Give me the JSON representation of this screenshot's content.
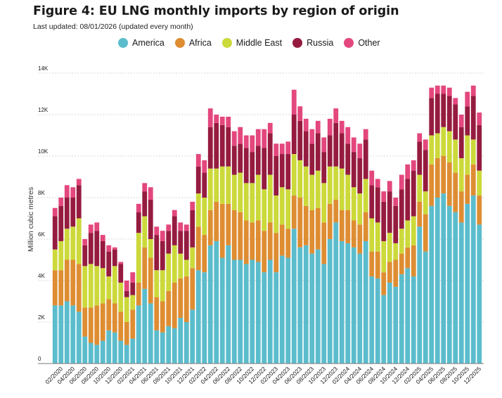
{
  "title": "Figure 4: EU LNG monthly imports by region of origin",
  "subtitle": "Last updated: 08/01/2026 (updated every month)",
  "colors": {
    "America": "#5bbccc",
    "Africa": "#de8d32",
    "Middle East": "#ccd93a",
    "Russia": "#951b3f",
    "Other": "#e3477d"
  },
  "chart_data": {
    "type": "bar",
    "stacked": true,
    "title": "Figure 4: EU LNG monthly imports by region of origin",
    "ylabel": "Million cubic metres",
    "xlabel": "",
    "ylim": [
      0,
      14000
    ],
    "yticks": [
      0,
      2000,
      4000,
      6000,
      8000,
      10000,
      12000,
      14000
    ],
    "ytick_labels": [
      "0",
      "2K",
      "4K",
      "6K",
      "8K",
      "10K",
      "12K",
      "14K"
    ],
    "legend": [
      "America",
      "Africa",
      "Middle East",
      "Russia",
      "Other"
    ],
    "legend_position": "top",
    "grid": true,
    "categories": [
      "01/2020",
      "02/2020",
      "03/2020",
      "04/2020",
      "05/2020",
      "06/2020",
      "07/2020",
      "08/2020",
      "09/2020",
      "10/2020",
      "11/2020",
      "12/2020",
      "01/2021",
      "02/2021",
      "03/2021",
      "04/2021",
      "05/2021",
      "06/2021",
      "07/2021",
      "08/2021",
      "09/2021",
      "10/2021",
      "11/2021",
      "12/2021",
      "01/2022",
      "02/2022",
      "03/2022",
      "04/2022",
      "05/2022",
      "06/2022",
      "07/2022",
      "08/2022",
      "09/2022",
      "10/2022",
      "11/2022",
      "12/2022",
      "01/2023",
      "02/2023",
      "03/2023",
      "04/2023",
      "05/2023",
      "06/2023",
      "07/2023",
      "08/2023",
      "09/2023",
      "10/2023",
      "11/2023",
      "12/2023",
      "01/2024",
      "02/2024",
      "03/2024",
      "04/2024",
      "05/2024",
      "06/2024",
      "07/2024",
      "08/2024",
      "09/2024",
      "10/2024",
      "11/2024",
      "12/2024",
      "01/2025",
      "02/2025",
      "03/2025",
      "04/2025",
      "05/2025",
      "06/2025",
      "07/2025",
      "08/2025",
      "09/2025",
      "10/2025",
      "11/2025",
      "12/2025"
    ],
    "xtick_labels": [
      "02/2020",
      "04/2020",
      "06/2020",
      "08/2020",
      "10/2020",
      "12/2020",
      "02/2021",
      "04/2021",
      "06/2021",
      "08/2021",
      "10/2021",
      "12/2021",
      "02/2022",
      "04/2022",
      "06/2022",
      "08/2022",
      "10/2022",
      "12/2022",
      "02/2023",
      "04/2023",
      "06/2023",
      "08/2023",
      "10/2023",
      "12/2023",
      "02/2024",
      "04/2024",
      "06/2024",
      "08/2024",
      "10/2024",
      "12/2024",
      "02/2025",
      "04/2025",
      "06/2025",
      "08/2025",
      "10/2025",
      "12/2025"
    ],
    "series": [
      {
        "name": "America",
        "values": [
          2800,
          2800,
          3000,
          2800,
          2500,
          1300,
          1000,
          900,
          1100,
          1600,
          1500,
          1100,
          900,
          1200,
          2800,
          3600,
          2900,
          1600,
          1500,
          1800,
          1700,
          2200,
          2000,
          2600,
          4500,
          4400,
          5700,
          5900,
          5100,
          5700,
          5000,
          5000,
          4800,
          5000,
          4900,
          4400,
          5000,
          4400,
          5200,
          5100,
          6500,
          5600,
          5700,
          5300,
          5500,
          4800,
          6000,
          6800,
          5900,
          5800,
          5600,
          5300,
          5900,
          4200,
          4100,
          3300,
          3900,
          3700,
          4300,
          4600,
          4200,
          6600,
          5400,
          7600,
          8000,
          8200,
          7600,
          7300,
          6800,
          7700,
          8100,
          6700
        ]
      },
      {
        "name": "Africa",
        "values": [
          1700,
          1700,
          2000,
          2200,
          2300,
          1400,
          1700,
          1900,
          1800,
          1500,
          1400,
          1400,
          1100,
          1400,
          1100,
          2000,
          2200,
          1600,
          1500,
          1700,
          2200,
          1900,
          2200,
          2000,
          2100,
          1800,
          1700,
          1900,
          2600,
          2000,
          2400,
          2300,
          2100,
          1800,
          2000,
          2000,
          1800,
          1900,
          1500,
          1400,
          1600,
          2400,
          1900,
          2100,
          2000,
          2000,
          1700,
          1100,
          1500,
          1600,
          1300,
          1400,
          1400,
          1200,
          1300,
          1100,
          1000,
          1300,
          1000,
          1000,
          1500,
          1200,
          1800,
          2000,
          1900,
          1800,
          2100,
          1900,
          1500,
          1400,
          1500,
          1400
        ]
      },
      {
        "name": "Middle East",
        "values": [
          1000,
          1400,
          1500,
          1600,
          2200,
          2000,
          2100,
          1900,
          1700,
          1100,
          1800,
          1400,
          1200,
          700,
          2400,
          1500,
          900,
          1300,
          1500,
          1800,
          1800,
          1200,
          800,
          1000,
          1600,
          1800,
          2000,
          1600,
          1800,
          1800,
          1700,
          1900,
          1800,
          1900,
          2200,
          2000,
          2300,
          1800,
          1800,
          1900,
          2000,
          1800,
          1900,
          1700,
          1800,
          1900,
          1800,
          1600,
          2000,
          1700,
          1600,
          1500,
          1600,
          1600,
          1400,
          1500,
          1400,
          800,
          1200,
          1300,
          1400,
          1300,
          1100,
          1400,
          1200,
          1400,
          1500,
          1600,
          1600,
          1900,
          1200,
          1200
        ]
      },
      {
        "name": "Russia",
        "values": [
          1600,
          1700,
          1500,
          1400,
          1600,
          1000,
          1500,
          1700,
          1300,
          1200,
          800,
          900,
          300,
          600,
          1000,
          1200,
          1900,
          1700,
          1400,
          1100,
          1400,
          1100,
          1400,
          1800,
          1300,
          1200,
          2000,
          2200,
          2000,
          1900,
          1400,
          1400,
          1700,
          1500,
          1400,
          2000,
          2000,
          1900,
          1600,
          1700,
          1900,
          1900,
          1700,
          1500,
          1800,
          1500,
          1500,
          2100,
          1700,
          1500,
          1700,
          1700,
          1900,
          1600,
          1700,
          1900,
          2000,
          1800,
          1900,
          2000,
          2200,
          1600,
          2000,
          1800,
          1900,
          1600,
          1700,
          1700,
          1500,
          1400,
          2100,
          2200
        ]
      },
      {
        "name": "Other",
        "values": [
          400,
          400,
          600,
          500,
          300,
          300,
          400,
          400,
          300,
          300,
          100,
          100,
          500,
          500,
          400,
          400,
          600,
          400,
          500,
          300,
          300,
          400,
          300,
          400,
          600,
          600,
          900,
          400,
          400,
          500,
          700,
          800,
          600,
          800,
          800,
          900,
          500,
          600,
          500,
          600,
          1200,
          700,
          600,
          700,
          600,
          700,
          800,
          700,
          600,
          800,
          700,
          700,
          500,
          700,
          400,
          500,
          500,
          400,
          700,
          700,
          500,
          400,
          500,
          500,
          400,
          400,
          400,
          300,
          600,
          700,
          500,
          600
        ]
      }
    ]
  }
}
